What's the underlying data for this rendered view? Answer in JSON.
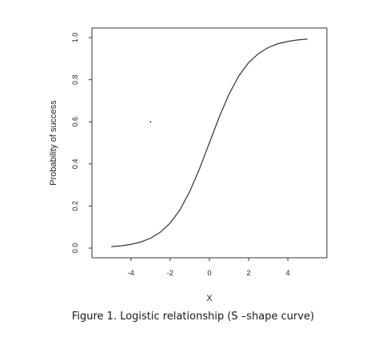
{
  "chart_data": {
    "type": "line",
    "title": "",
    "xlabel": "X",
    "ylabel": "Probability of success",
    "xlim": [
      -5.5,
      5.5
    ],
    "ylim": [
      0,
      1
    ],
    "xticks": [
      -4,
      -2,
      0,
      2,
      4
    ],
    "xtick_labels": [
      "-4",
      "-2",
      "0",
      "2",
      "4"
    ],
    "yticks": [
      0,
      0.2,
      0.4,
      0.6,
      0.8,
      1
    ],
    "ytick_labels": [
      "0.0",
      "0.2",
      "0.4",
      "0.6",
      "0.8",
      "1.0"
    ],
    "grid": false,
    "series": [
      {
        "x": [
          -5,
          -4.5,
          -4,
          -3.5,
          -3,
          -2.5,
          -2,
          -1.5,
          -1,
          -0.5,
          0,
          0.5,
          1,
          1.5,
          2,
          2.5,
          3,
          3.5,
          4,
          4.5,
          5
        ],
        "values": [
          0.007,
          0.011,
          0.018,
          0.029,
          0.047,
          0.076,
          0.119,
          0.182,
          0.269,
          0.378,
          0.5,
          0.622,
          0.731,
          0.818,
          0.881,
          0.924,
          0.953,
          0.971,
          0.982,
          0.989,
          0.993
        ]
      }
    ],
    "annotations": [
      {
        "x": -3.0,
        "y": 0.6
      }
    ]
  },
  "caption": "Figure 1. Logistic relationship (S –shape curve)"
}
